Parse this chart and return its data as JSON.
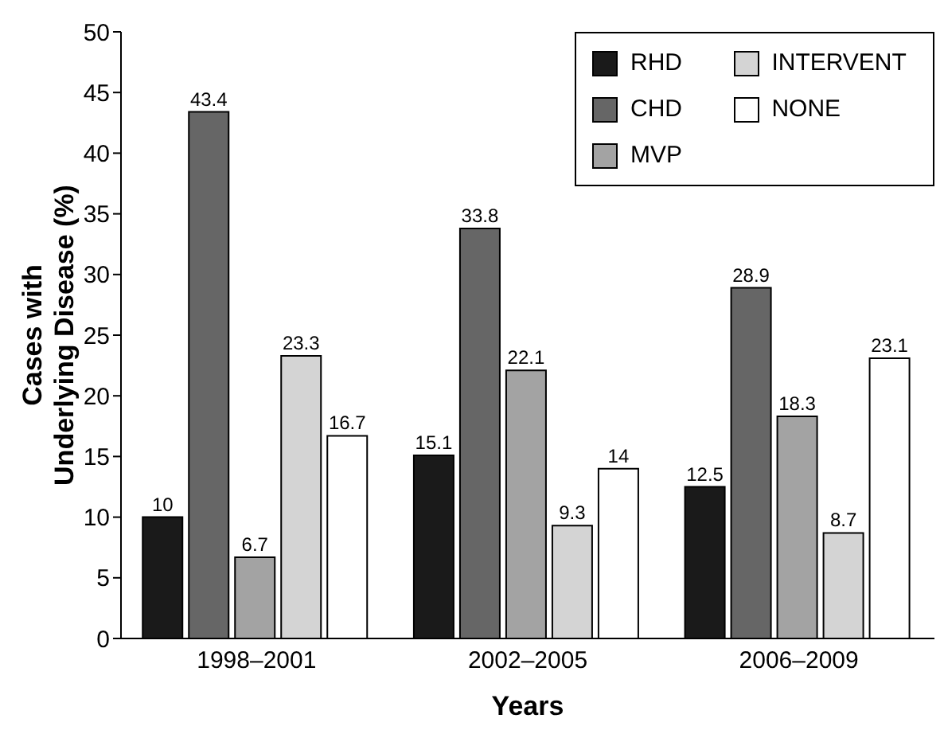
{
  "chart_data": {
    "type": "bar",
    "xlabel": "Years",
    "ylabel": "Cases with Underlying Disease (%)",
    "categories": [
      "1998–2001",
      "2002–2005",
      "2006–2009"
    ],
    "series": [
      {
        "name": "RHD",
        "color": "#1a1a1a",
        "values": [
          10,
          15.1,
          12.5
        ]
      },
      {
        "name": "CHD",
        "color": "#666666",
        "values": [
          43.4,
          33.8,
          28.9
        ]
      },
      {
        "name": "MVP",
        "color": "#a3a3a3",
        "values": [
          6.7,
          22.1,
          18.3
        ]
      },
      {
        "name": "INTERVENT",
        "color": "#d4d4d4",
        "values": [
          23.3,
          9.3,
          8.7
        ]
      },
      {
        "name": "NONE",
        "color": "#ffffff",
        "values": [
          16.7,
          14,
          23.1
        ]
      }
    ],
    "ylim": [
      0,
      50
    ],
    "yticks": [
      0,
      5,
      10,
      15,
      20,
      25,
      30,
      35,
      40,
      45,
      50
    ],
    "data_labels": true,
    "legend": "top right",
    "grid": false
  }
}
